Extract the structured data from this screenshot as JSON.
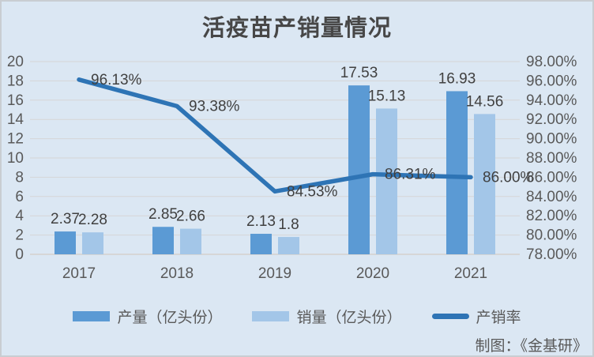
{
  "title": "活疫苗产销量情况",
  "credit": "制图：《金基研》",
  "colors": {
    "background": "#dbe7f3",
    "border": "#c9cdd2",
    "gridline": "#d6d6d6",
    "axis_text": "#595959",
    "label_text": "#404040",
    "title_text": "#474747",
    "production_bar": "#5b9ad4",
    "sales_bar": "#a3c6e8",
    "ratio_line": "#2e74b5"
  },
  "chart_data": {
    "type": "bar",
    "subtype": "grouped bars + line on secondary axis",
    "title": "活疫苗产销量情况",
    "categories": [
      "2017",
      "2018",
      "2019",
      "2020",
      "2021"
    ],
    "series": [
      {
        "name": "产量（亿头份）",
        "type": "bar",
        "axis": "left",
        "color": "#5b9ad4",
        "values": [
          2.37,
          2.85,
          2.13,
          17.53,
          16.93
        ],
        "labels": [
          "2.37",
          "2.85",
          "2.13",
          "17.53",
          "16.93"
        ]
      },
      {
        "name": "销量（亿头份）",
        "type": "bar",
        "axis": "left",
        "color": "#a3c6e8",
        "values": [
          2.28,
          2.66,
          1.8,
          15.13,
          14.56
        ],
        "labels": [
          "2.28",
          "2.66",
          "1.8",
          "15.13",
          "14.56"
        ]
      },
      {
        "name": "产销率",
        "type": "line",
        "axis": "right",
        "color": "#2e74b5",
        "values": [
          96.13,
          93.38,
          84.53,
          86.31,
          86.0
        ],
        "labels": [
          "96.13%",
          "93.38%",
          "84.53%",
          "86.31%",
          "86.00%"
        ]
      }
    ],
    "left_axis": {
      "min": 0,
      "max": 20,
      "step": 2,
      "ticks": [
        "0",
        "2",
        "4",
        "6",
        "8",
        "10",
        "12",
        "14",
        "16",
        "18",
        "20"
      ]
    },
    "right_axis": {
      "min": 78,
      "max": 98,
      "step": 2,
      "ticks": [
        "78.00%",
        "80.00%",
        "82.00%",
        "84.00%",
        "86.00%",
        "88.00%",
        "90.00%",
        "92.00%",
        "94.00%",
        "96.00%",
        "98.00%"
      ]
    },
    "grid": true,
    "legend_position": "bottom"
  }
}
